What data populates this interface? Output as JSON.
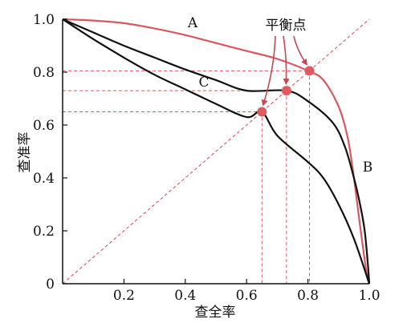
{
  "chart_data": {
    "type": "line",
    "title": "",
    "xlabel": "查全率",
    "ylabel": "查准率",
    "xlim": [
      0,
      1
    ],
    "ylim": [
      0,
      1
    ],
    "x_ticks": [
      "0.2",
      "0.4",
      "0.6",
      "0.8",
      "1.0"
    ],
    "x_tick_values": [
      0.2,
      0.4,
      0.6,
      0.8,
      1.0
    ],
    "y_ticks": [
      "0",
      "0.2",
      "0.4",
      "0.6",
      "0.8",
      "1.0"
    ],
    "y_tick_values": [
      0,
      0.2,
      0.4,
      0.6,
      0.8,
      1.0
    ],
    "grid": false,
    "colors": {
      "A": "#d9585f",
      "B": "#111111",
      "C": "#111111",
      "diagonal": "#d9585f",
      "point": "#e05a62",
      "arrow": "#c8474f"
    },
    "series": [
      {
        "name": "A",
        "points": [
          [
            0,
            1
          ],
          [
            0.1,
            0.995
          ],
          [
            0.2,
            0.985
          ],
          [
            0.3,
            0.965
          ],
          [
            0.4,
            0.94
          ],
          [
            0.5,
            0.91
          ],
          [
            0.6,
            0.88
          ],
          [
            0.7,
            0.85
          ],
          [
            0.8,
            0.805
          ],
          [
            0.85,
            0.77
          ],
          [
            0.9,
            0.67
          ],
          [
            0.93,
            0.55
          ],
          [
            0.95,
            0.4
          ],
          [
            0.97,
            0.22
          ],
          [
            0.99,
            0.05
          ],
          [
            1,
            0
          ]
        ]
      },
      {
        "name": "B",
        "points": [
          [
            0,
            1
          ],
          [
            0.1,
            0.95
          ],
          [
            0.2,
            0.9
          ],
          [
            0.3,
            0.855
          ],
          [
            0.4,
            0.81
          ],
          [
            0.5,
            0.77
          ],
          [
            0.6,
            0.73
          ],
          [
            0.73,
            0.73
          ],
          [
            0.8,
            0.69
          ],
          [
            0.88,
            0.61
          ],
          [
            0.92,
            0.52
          ],
          [
            0.95,
            0.4
          ],
          [
            0.97,
            0.3
          ],
          [
            0.985,
            0.2
          ],
          [
            0.995,
            0.08
          ],
          [
            1,
            0
          ]
        ]
      },
      {
        "name": "C",
        "points": [
          [
            0,
            1
          ],
          [
            0.1,
            0.925
          ],
          [
            0.2,
            0.855
          ],
          [
            0.3,
            0.79
          ],
          [
            0.4,
            0.735
          ],
          [
            0.5,
            0.68
          ],
          [
            0.6,
            0.63
          ],
          [
            0.65,
            0.65
          ],
          [
            0.7,
            0.56
          ],
          [
            0.8,
            0.46
          ],
          [
            0.85,
            0.4
          ],
          [
            0.9,
            0.3
          ],
          [
            0.95,
            0.17
          ],
          [
            1,
            0
          ]
        ]
      }
    ],
    "diagonal": [
      [
        0,
        0
      ],
      [
        1,
        1
      ]
    ],
    "break_even_points": [
      {
        "curve": "C",
        "x": 0.65,
        "y": 0.65
      },
      {
        "curve": "B",
        "x": 0.73,
        "y": 0.73
      },
      {
        "curve": "A",
        "x": 0.805,
        "y": 0.805
      }
    ],
    "annotation": "平衡点",
    "curve_labels": [
      "A",
      "B",
      "C"
    ]
  }
}
